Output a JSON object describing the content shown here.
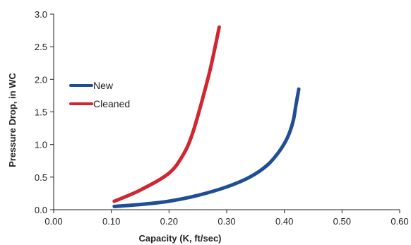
{
  "chart_data": {
    "type": "line",
    "title": "",
    "xlabel": "Capacity (K, ft/sec)",
    "ylabel": "Pressure Drop, in WC",
    "xlim": [
      0.0,
      0.6
    ],
    "ylim": [
      0.0,
      3.0
    ],
    "x_ticks": [
      "0.00",
      "0.10",
      "0.20",
      "0.30",
      "0.40",
      "0.50",
      "0.60"
    ],
    "y_ticks": [
      "0.0",
      "0.5",
      "1.0",
      "1.5",
      "2.0",
      "2.5",
      "3.0"
    ],
    "grid": false,
    "legend_position": "left",
    "series": [
      {
        "name": "New",
        "color": "#1f4e96",
        "points": [
          [
            0.105,
            0.05
          ],
          [
            0.15,
            0.08
          ],
          [
            0.2,
            0.13
          ],
          [
            0.25,
            0.22
          ],
          [
            0.3,
            0.35
          ],
          [
            0.34,
            0.5
          ],
          [
            0.37,
            0.68
          ],
          [
            0.39,
            0.88
          ],
          [
            0.405,
            1.1
          ],
          [
            0.415,
            1.35
          ],
          [
            0.42,
            1.6
          ],
          [
            0.425,
            1.85
          ]
        ]
      },
      {
        "name": "Cleaned",
        "color": "#d02630",
        "points": [
          [
            0.105,
            0.13
          ],
          [
            0.15,
            0.3
          ],
          [
            0.2,
            0.56
          ],
          [
            0.225,
            0.85
          ],
          [
            0.24,
            1.15
          ],
          [
            0.255,
            1.6
          ],
          [
            0.27,
            2.1
          ],
          [
            0.28,
            2.5
          ],
          [
            0.287,
            2.8
          ]
        ]
      }
    ]
  }
}
